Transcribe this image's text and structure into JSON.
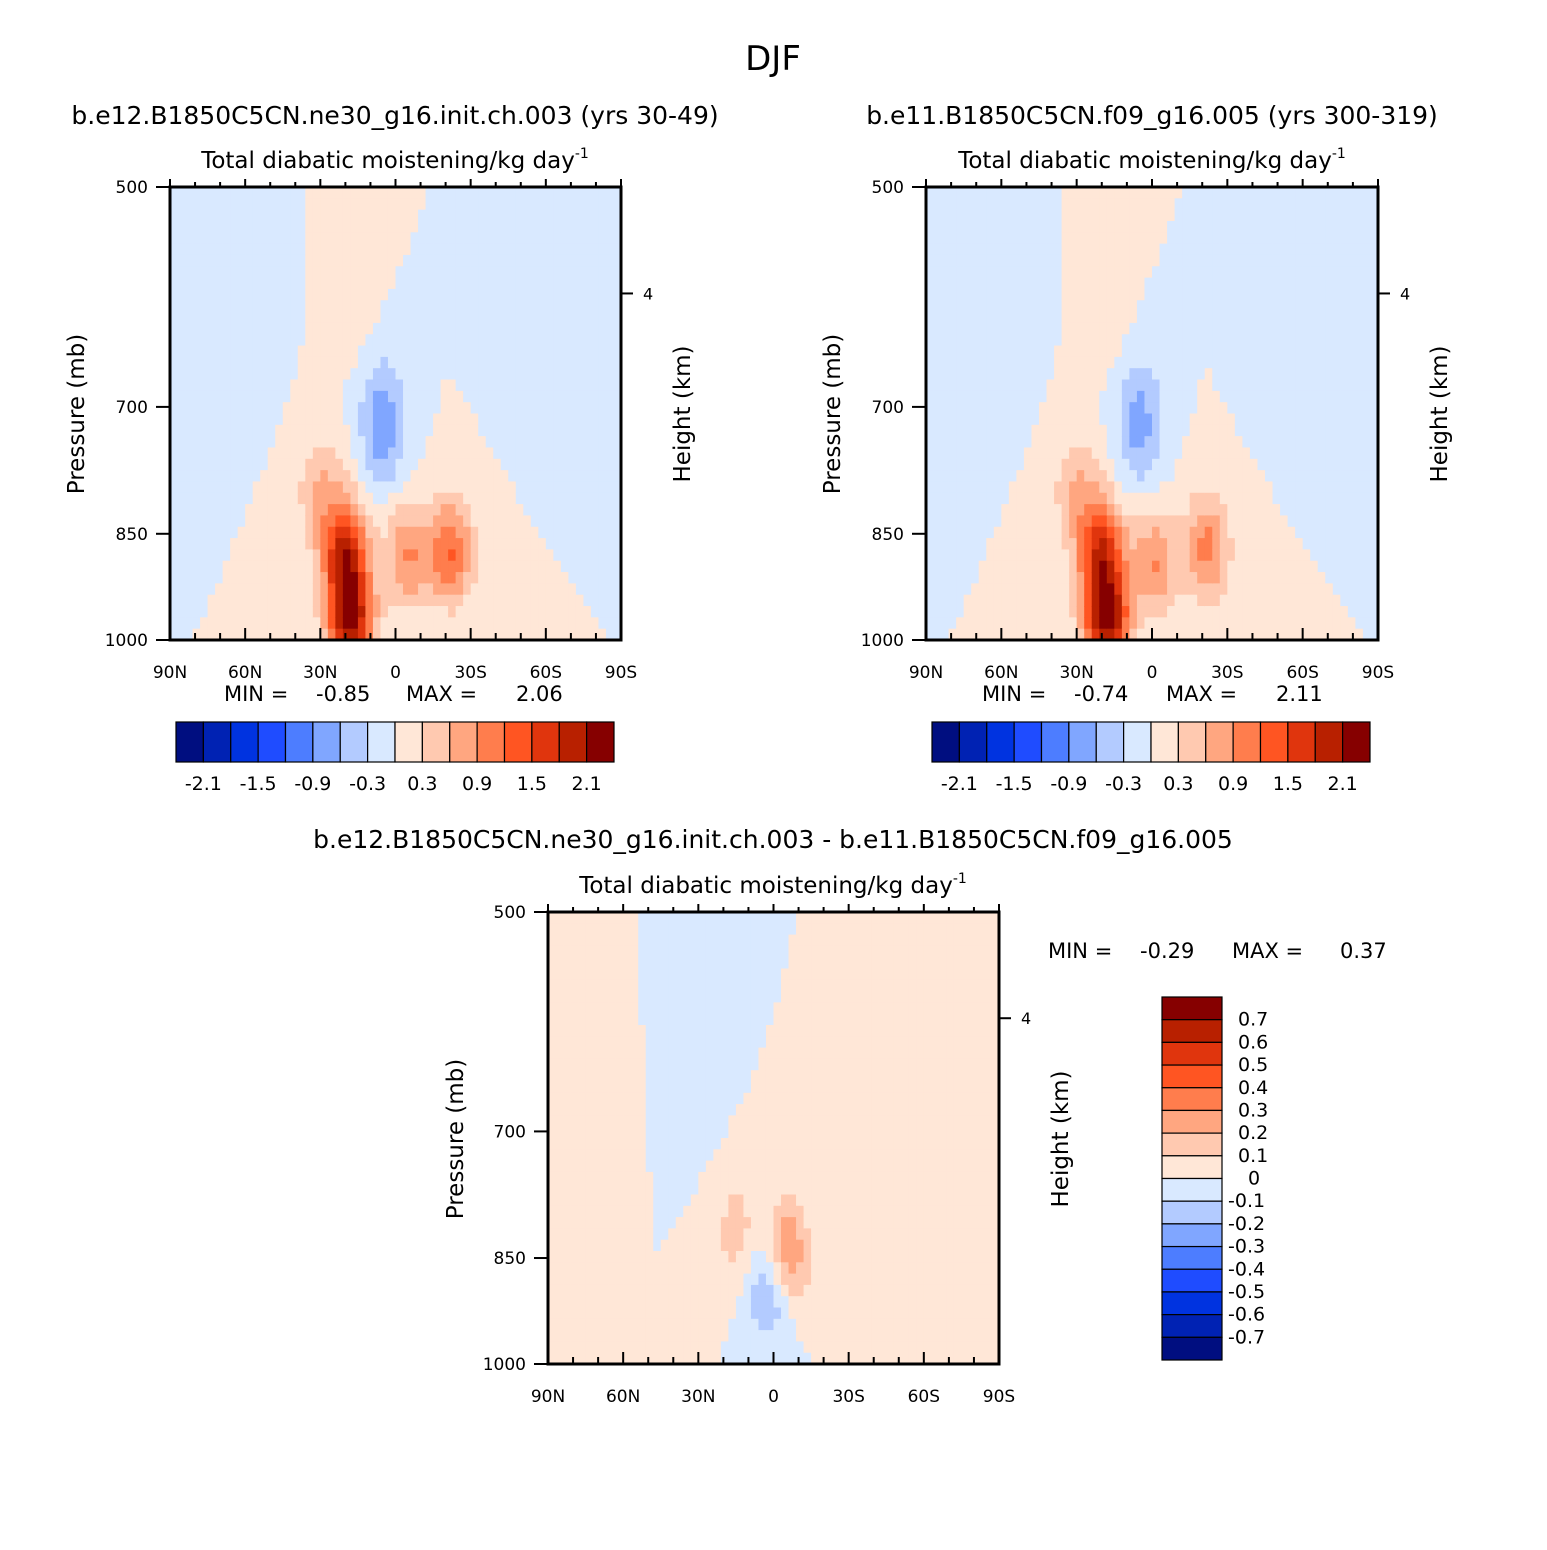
{
  "page_title": "DJF",
  "colors": {
    "blues": [
      "#000e80",
      "#0022b3",
      "#0033e0",
      "#1f4cff",
      "#4d7dff",
      "#80a6ff",
      "#b3cbff",
      "#d9e9ff"
    ],
    "reds": [
      "#ffe7d7",
      "#ffc9b0",
      "#ffa680",
      "#ff7d4d",
      "#ff5522",
      "#e0350d",
      "#b82000",
      "#860000"
    ]
  },
  "chart_data": [
    {
      "type": "heatmap",
      "id": "p1",
      "title": "b.e12.B1850C5CN.ne30_g16.init.ch.003 (yrs 30-49)",
      "subtitle": "Total diabatic moistening/kg day",
      "subtitle_sup": "-1",
      "xlabel": "",
      "ylabel": "Pressure (mb)",
      "y2label": "Height (km)",
      "x_ticks": [
        "90N",
        "60N",
        "30N",
        "0",
        "30S",
        "60S",
        "90S"
      ],
      "xlim": [
        90,
        -90
      ],
      "y_ticks": [
        "500",
        "700",
        "850",
        "1000"
      ],
      "ylim": [
        1000,
        500
      ],
      "y2_ticks": [
        "4"
      ],
      "stats": {
        "min_label": "MIN =",
        "min": "-0.85",
        "max_label": "MAX =",
        "max": "2.06"
      },
      "legend": {
        "orientation": "horizontal",
        "labels": [
          "-2.1",
          "-1.5",
          "-0.9",
          "-0.3",
          "0.3",
          "0.9",
          "1.5",
          "2.1"
        ]
      },
      "features": [
        {
          "lat": 18,
          "p": 975,
          "value": 2.06
        },
        {
          "lat": 20,
          "p": 880,
          "value": 1.8
        },
        {
          "lat": 30,
          "p": 800,
          "value": 0.6
        },
        {
          "lat": 15,
          "p": 600,
          "value": 0.15
        },
        {
          "lat": -22,
          "p": 875,
          "value": 1.2
        },
        {
          "lat": -5,
          "p": 880,
          "value": 0.9
        },
        {
          "lat": 5,
          "p": 720,
          "value": -0.85
        },
        {
          "lat": 57,
          "p": 600,
          "value": -0.3
        },
        {
          "lat": -46,
          "p": 600,
          "value": -0.3
        }
      ]
    },
    {
      "type": "heatmap",
      "id": "p2",
      "title": "b.e11.B1850C5CN.f09_g16.005 (yrs 300-319)",
      "subtitle": "Total diabatic moistening/kg day",
      "subtitle_sup": "-1",
      "xlabel": "",
      "ylabel": "Pressure (mb)",
      "y2label": "Height (km)",
      "x_ticks": [
        "90N",
        "60N",
        "30N",
        "0",
        "30S",
        "60S",
        "90S"
      ],
      "xlim": [
        90,
        -90
      ],
      "y_ticks": [
        "500",
        "700",
        "850",
        "1000"
      ],
      "ylim": [
        1000,
        500
      ],
      "y2_ticks": [
        "4"
      ],
      "stats": {
        "min_label": "MIN =",
        "min": "-0.74",
        "max_label": "MAX =",
        "max": "2.11"
      },
      "legend": {
        "orientation": "horizontal",
        "labels": [
          "-2.1",
          "-1.5",
          "-0.9",
          "-0.3",
          "0.3",
          "0.9",
          "1.5",
          "2.1"
        ]
      },
      "features": [
        {
          "lat": 18,
          "p": 975,
          "value": 2.11
        },
        {
          "lat": 20,
          "p": 880,
          "value": 1.7
        },
        {
          "lat": 30,
          "p": 800,
          "value": 0.6
        },
        {
          "lat": 16,
          "p": 600,
          "value": 0.15
        },
        {
          "lat": -22,
          "p": 870,
          "value": 1.0
        },
        {
          "lat": -1,
          "p": 890,
          "value": 0.9
        },
        {
          "lat": 5,
          "p": 720,
          "value": -0.74
        },
        {
          "lat": 57,
          "p": 600,
          "value": -0.3
        },
        {
          "lat": -46,
          "p": 600,
          "value": -0.3
        }
      ]
    },
    {
      "type": "heatmap",
      "id": "p3",
      "title": "b.e12.B1850C5CN.ne30_g16.init.ch.003 - b.e11.B1850C5CN.f09_g16.005",
      "subtitle": "Total diabatic moistening/kg day",
      "subtitle_sup": "-1",
      "xlabel": "",
      "ylabel": "Pressure (mb)",
      "y2label": "Height (km)",
      "x_ticks": [
        "90N",
        "60N",
        "30N",
        "0",
        "30S",
        "60S",
        "90S"
      ],
      "xlim": [
        90,
        -90
      ],
      "y_ticks": [
        "500",
        "700",
        "850",
        "1000"
      ],
      "ylim": [
        1000,
        500
      ],
      "y2_ticks": [
        "4"
      ],
      "stats": {
        "min_label": "MIN =",
        "min": "-0.29",
        "max_label": "MAX =",
        "max": "0.37"
      },
      "legend": {
        "orientation": "vertical",
        "labels": [
          "0.7",
          "0.6",
          "0.5",
          "0.4",
          "0.3",
          "0.2",
          "0.1",
          "0",
          "-0.1",
          "-0.2",
          "-0.3",
          "-0.4",
          "-0.5",
          "-0.6",
          "-0.7"
        ]
      },
      "features": [
        {
          "lat": -5,
          "p": 850,
          "value": 0.37
        },
        {
          "lat": 15,
          "p": 820,
          "value": 0.15
        },
        {
          "lat": 1,
          "p": 890,
          "value": -0.29
        },
        {
          "lat": 72,
          "p": 700,
          "value": 0.05
        },
        {
          "lat": -70,
          "p": 700,
          "value": 0.05
        },
        {
          "lat": 30,
          "p": 650,
          "value": -0.05
        }
      ]
    }
  ]
}
